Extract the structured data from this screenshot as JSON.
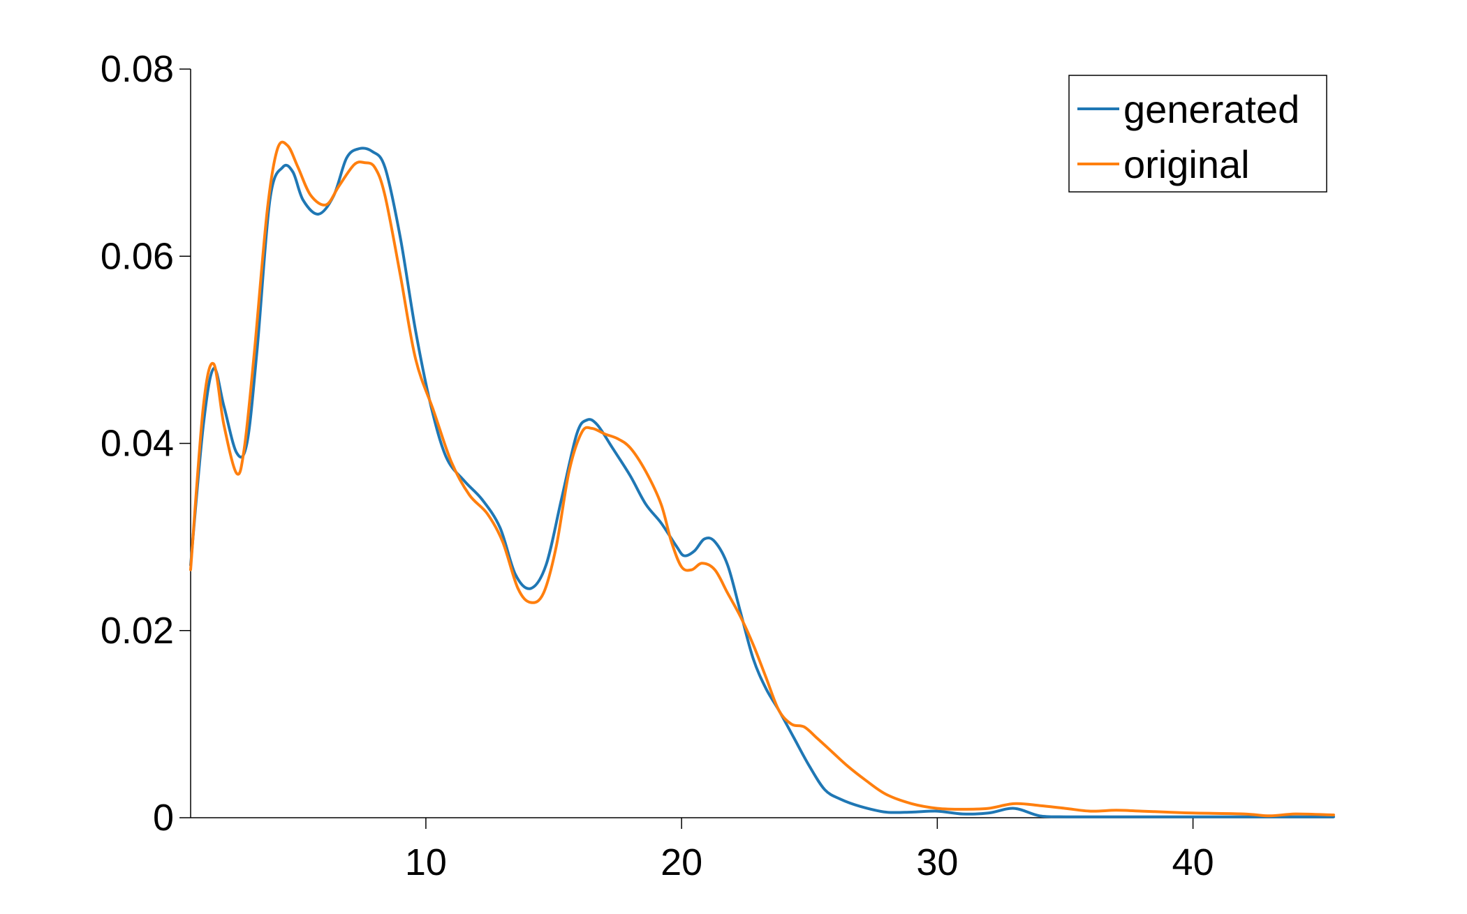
{
  "chart_data": {
    "type": "line",
    "title": "",
    "xlabel": "",
    "ylabel": "",
    "xlim": [
      0.8,
      45.5
    ],
    "ylim": [
      0,
      0.08
    ],
    "grid": false,
    "legend_position": "top-right",
    "x_ticks": [
      10,
      20,
      30,
      40
    ],
    "x_tick_labels": [
      "10",
      "20",
      "30",
      "40"
    ],
    "y_ticks": [
      0,
      0.02,
      0.04,
      0.06,
      0.08
    ],
    "y_tick_labels": [
      "0",
      "0.02",
      "0.04",
      "0.06",
      "0.08"
    ],
    "series": [
      {
        "name": "generated",
        "color": "#1f77b4",
        "x": [
          0.8,
          1.3,
          1.7,
          2.1,
          2.6,
          3.0,
          3.4,
          3.9,
          4.4,
          4.8,
          5.2,
          5.8,
          6.4,
          6.9,
          7.4,
          7.9,
          8.4,
          9.0,
          9.6,
          10.2,
          10.8,
          11.5,
          12.2,
          12.9,
          13.5,
          14.1,
          14.7,
          15.3,
          15.9,
          16.3,
          16.7,
          17.3,
          18.0,
          18.6,
          19.2,
          19.8,
          20.1,
          20.5,
          20.9,
          21.3,
          21.8,
          22.3,
          22.8,
          23.3,
          23.8,
          24.4,
          25.0,
          25.6,
          26.2,
          27.0,
          28.0,
          29.0,
          30.0,
          31.0,
          32.0,
          33.0,
          34.0,
          35.0,
          36.0,
          38.0,
          40.0,
          42.0,
          44.0,
          45.5
        ],
        "y": [
          0.027,
          0.042,
          0.048,
          0.044,
          0.039,
          0.04,
          0.05,
          0.066,
          0.0695,
          0.069,
          0.066,
          0.0645,
          0.0665,
          0.0705,
          0.0715,
          0.0712,
          0.0695,
          0.062,
          0.052,
          0.044,
          0.0385,
          0.036,
          0.034,
          0.031,
          0.026,
          0.0245,
          0.027,
          0.034,
          0.041,
          0.0425,
          0.042,
          0.0395,
          0.0365,
          0.0335,
          0.0315,
          0.029,
          0.028,
          0.0285,
          0.0298,
          0.0295,
          0.027,
          0.022,
          0.017,
          0.0138,
          0.0115,
          0.0085,
          0.0055,
          0.003,
          0.002,
          0.0012,
          0.0006,
          0.0006,
          0.0007,
          0.0004,
          0.0005,
          0.001,
          0.0002,
          0.0001,
          0.0001,
          0.0001,
          0.0001,
          0.0001,
          0.0001,
          0.0001
        ]
      },
      {
        "name": "original",
        "color": "#ff7f0e",
        "x": [
          0.8,
          1.3,
          1.7,
          2.1,
          2.6,
          2.9,
          3.3,
          3.8,
          4.2,
          4.6,
          5.0,
          5.5,
          6.1,
          6.6,
          7.2,
          7.6,
          8.0,
          8.4,
          9.0,
          9.6,
          10.3,
          11.0,
          11.7,
          12.4,
          13.0,
          13.6,
          14.1,
          14.6,
          15.1,
          15.6,
          16.1,
          16.5,
          17.0,
          17.5,
          18.0,
          18.6,
          19.2,
          19.6,
          20.0,
          20.4,
          20.8,
          21.3,
          21.8,
          22.3,
          22.8,
          23.3,
          23.8,
          24.3,
          24.8,
          25.3,
          25.9,
          26.5,
          27.2,
          28.0,
          29.0,
          30.0,
          31.0,
          32.0,
          33.0,
          34.0,
          35.0,
          36.0,
          37.0,
          38.0,
          39.0,
          40.0,
          42.0,
          43.0,
          44.0,
          45.5
        ],
        "y": [
          0.0265,
          0.044,
          0.0485,
          0.042,
          0.0368,
          0.0395,
          0.05,
          0.065,
          0.0715,
          0.0718,
          0.0695,
          0.0665,
          0.0655,
          0.0675,
          0.0698,
          0.07,
          0.0695,
          0.0665,
          0.058,
          0.049,
          0.0435,
          0.038,
          0.0345,
          0.0325,
          0.0295,
          0.0245,
          0.023,
          0.024,
          0.029,
          0.037,
          0.0412,
          0.0416,
          0.041,
          0.0405,
          0.0395,
          0.037,
          0.0335,
          0.0295,
          0.0268,
          0.0265,
          0.0272,
          0.0265,
          0.024,
          0.0215,
          0.0185,
          0.015,
          0.0115,
          0.01,
          0.0097,
          0.0085,
          0.007,
          0.0055,
          0.004,
          0.0025,
          0.0015,
          0.001,
          0.0009,
          0.001,
          0.0015,
          0.0013,
          0.001,
          0.0007,
          0.0008,
          0.0007,
          0.0006,
          0.0005,
          0.0004,
          0.0002,
          0.0004,
          0.0003
        ]
      }
    ]
  }
}
